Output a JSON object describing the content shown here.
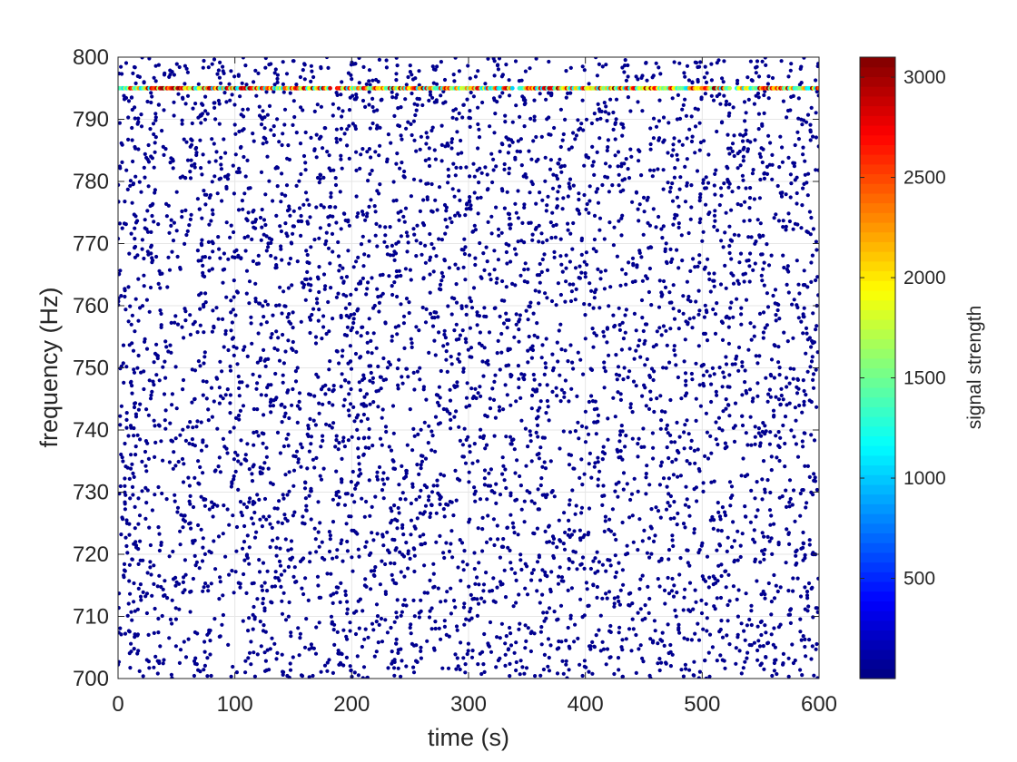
{
  "chart_data": {
    "type": "scatter",
    "title": "",
    "xlabel": "time (s)",
    "ylabel": "frequency (Hz)",
    "xlim": [
      0,
      600
    ],
    "ylim": [
      700,
      800
    ],
    "xticks": [
      0,
      100,
      200,
      300,
      400,
      500,
      600
    ],
    "yticks": [
      700,
      710,
      720,
      730,
      740,
      750,
      760,
      770,
      780,
      790,
      800
    ],
    "grid": true,
    "colormap": "jet",
    "colorbar": {
      "label": "signal strength",
      "range": [
        0,
        3100
      ],
      "ticks": [
        500,
        1000,
        1500,
        2000,
        2500,
        3000
      ]
    },
    "background_noise": {
      "description": "dense scatter of weak detections filling the whole time-frequency plane",
      "x_range": [
        0,
        600
      ],
      "y_range": [
        700,
        800
      ],
      "signal_strength_approx": 50,
      "color": "#00008f"
    },
    "signal_line": {
      "frequency": 795,
      "x_range": [
        0,
        600
      ],
      "signal_strength_range": [
        1000,
        3100
      ],
      "gaps": [
        [
          183,
          187
        ],
        [
          338,
          342
        ],
        [
          524,
          528
        ]
      ]
    }
  }
}
